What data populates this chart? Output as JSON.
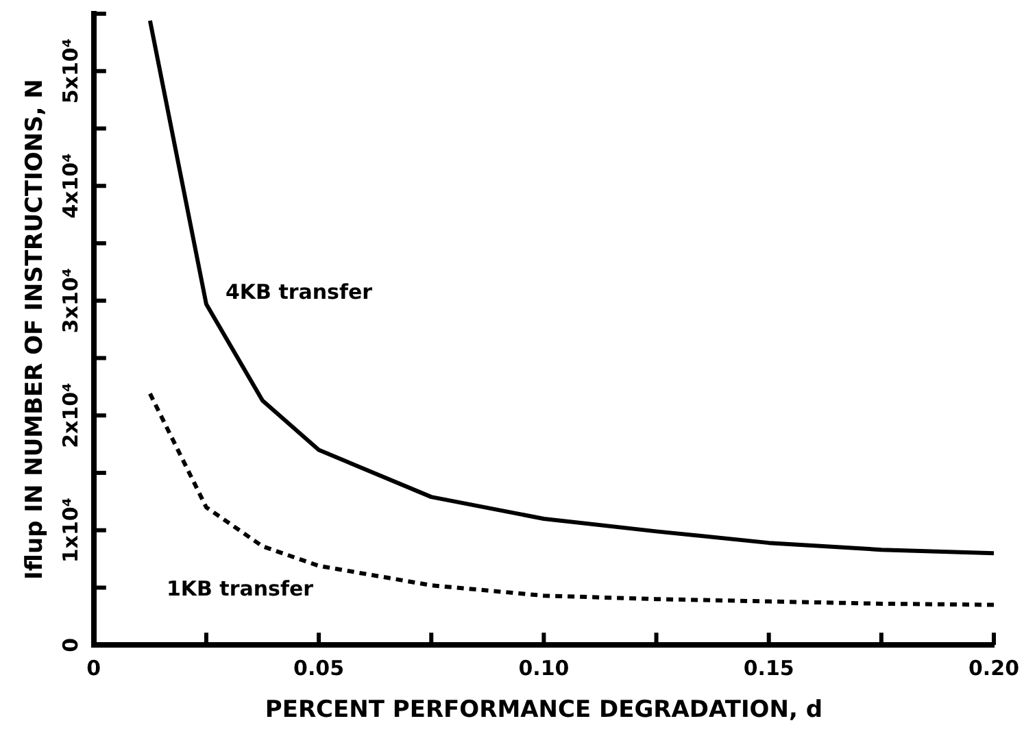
{
  "chart_data": {
    "type": "line",
    "xlabel": "PERCENT PERFORMANCE DEGRADATION, d",
    "ylabel": "Iflup IN NUMBER OF INSTRUCTIONS, N",
    "x": [
      0.0125,
      0.025,
      0.0375,
      0.05,
      0.075,
      0.1,
      0.125,
      0.15,
      0.175,
      0.2
    ],
    "series": [
      {
        "name": "4KB transfer",
        "color": "#000000",
        "line_style": "solid",
        "values": [
          54400,
          29700,
          21300,
          17000,
          12900,
          11000,
          9900,
          8900,
          8300,
          8000
        ]
      },
      {
        "name": "1KB transfer",
        "color": "#000000",
        "line_style": "dashed",
        "values": [
          21900,
          12000,
          8600,
          6900,
          5200,
          4300,
          4000,
          3800,
          3600,
          3500
        ]
      }
    ],
    "xlim": [
      0,
      0.2
    ],
    "ylim": [
      0,
      55000
    ],
    "xticks": [
      0,
      {
        "value": 0.025,
        "label": null
      },
      {
        "value": 0.05,
        "label": "0.05"
      },
      {
        "value": 0.075,
        "label": null
      },
      {
        "value": 0.1,
        "label": "0.10"
      },
      {
        "value": 0.125,
        "label": null
      },
      {
        "value": 0.15,
        "label": "0.15"
      },
      {
        "value": 0.175,
        "label": null
      },
      {
        "value": 0.2,
        "label": "0.20"
      }
    ],
    "yticks": [
      0,
      {
        "value": 5000,
        "label": null
      },
      {
        "value": 10000,
        "label": "1x10⁴"
      },
      {
        "value": 15000,
        "label": null
      },
      {
        "value": 20000,
        "label": "2x10⁴"
      },
      {
        "value": 25000,
        "label": null
      },
      {
        "value": 30000,
        "label": "3x10⁴"
      },
      {
        "value": 35000,
        "label": null
      },
      {
        "value": 40000,
        "label": "4x10⁴"
      },
      {
        "value": 45000,
        "label": null
      },
      {
        "value": 50000,
        "label": "5x10⁴"
      },
      {
        "value": 55000,
        "label": null
      }
    ],
    "grid": false,
    "legend": false,
    "marker": "none"
  }
}
